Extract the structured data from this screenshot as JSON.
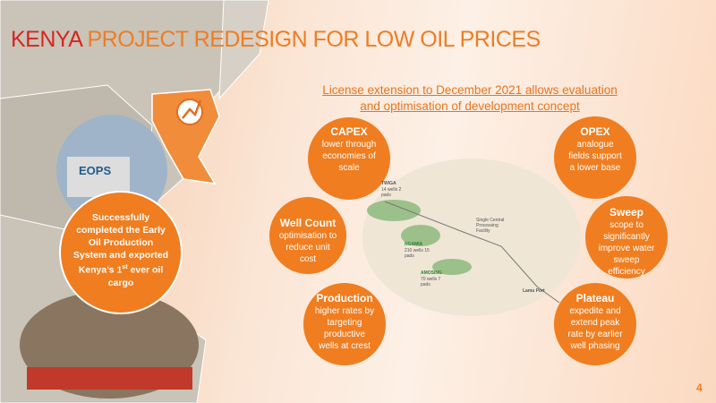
{
  "title": {
    "highlight": "KENYA",
    "rest": " PROJECT REDESIGN FOR LOW OIL PRICES"
  },
  "subtitle": [
    "License extension to December 2021 allows evaluation",
    "and optimisation of development concept"
  ],
  "highlight_circle": {
    "text": "Successfully completed the Early Oil Production System and exported Kenya’s 1",
    "superscript": "st",
    "text_end": " ever oil cargo"
  },
  "photo_label": "EOPS",
  "bubbles": [
    {
      "heading": "CAPEX",
      "text": "lower through economies of scale"
    },
    {
      "heading": "OPEX",
      "text": "analogue fields support a lower base"
    },
    {
      "heading": "Well Count",
      "text": "optimisation to reduce unit cost"
    },
    {
      "heading": "Sweep",
      "text": "scope to significantly improve water sweep efficiency"
    },
    {
      "heading": "Production",
      "text": "higher rates by targeting productive wells at crest"
    },
    {
      "heading": "Plateau",
      "text": "expedite and extend peak rate by earlier well phasing"
    }
  ],
  "field_map": {
    "labels": [
      "TWIGA",
      "14 wells 2 pads",
      "NGAMIA",
      "210 wells 15 pads",
      "AMOSING",
      "70 wells 7 pads",
      "Single Central Processing Facility",
      "Lamu Port"
    ]
  },
  "page_number": "4"
}
